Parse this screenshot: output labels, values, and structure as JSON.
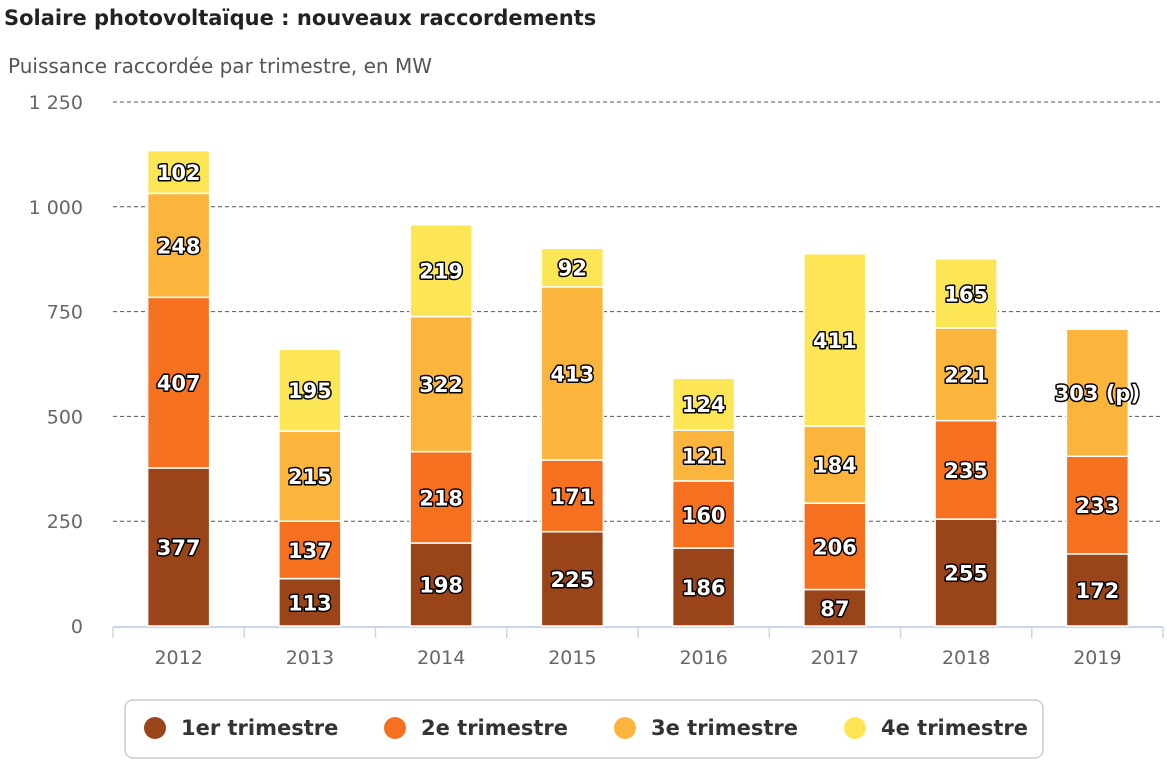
{
  "chart_data": {
    "type": "stacked_bar",
    "title": "Solaire photovoltaïque : nouveaux raccordements",
    "subtitle": "Puissance raccordée par trimestre, en MW",
    "categories": [
      "2012",
      "2013",
      "2014",
      "2015",
      "2016",
      "2017",
      "2018",
      "2019"
    ],
    "series": [
      {
        "name": "1er trimestre",
        "color": "#9a4419",
        "values": [
          377,
          113,
          198,
          225,
          186,
          87,
          255,
          172
        ]
      },
      {
        "name": "2e trimestre",
        "color": "#f5701f",
        "values": [
          407,
          137,
          218,
          171,
          160,
          206,
          235,
          233
        ]
      },
      {
        "name": "3e trimestre",
        "color": "#fbb53c",
        "values": [
          248,
          215,
          322,
          413,
          121,
          184,
          221,
          303
        ],
        "value_labels": [
          "248",
          "215",
          "322",
          "413",
          "121",
          "184",
          "221",
          "303 (p)"
        ]
      },
      {
        "name": "4e trimestre",
        "color": "#fde655",
        "values": [
          102,
          195,
          219,
          92,
          124,
          411,
          165,
          null
        ]
      }
    ],
    "ylim": [
      0,
      1250
    ],
    "yticks": [
      0,
      250,
      500,
      750,
      {
        "value": 1000,
        "label": "1 000"
      },
      {
        "value": 1250,
        "label": "1 250"
      }
    ],
    "grid": true,
    "legend": "bottom"
  }
}
